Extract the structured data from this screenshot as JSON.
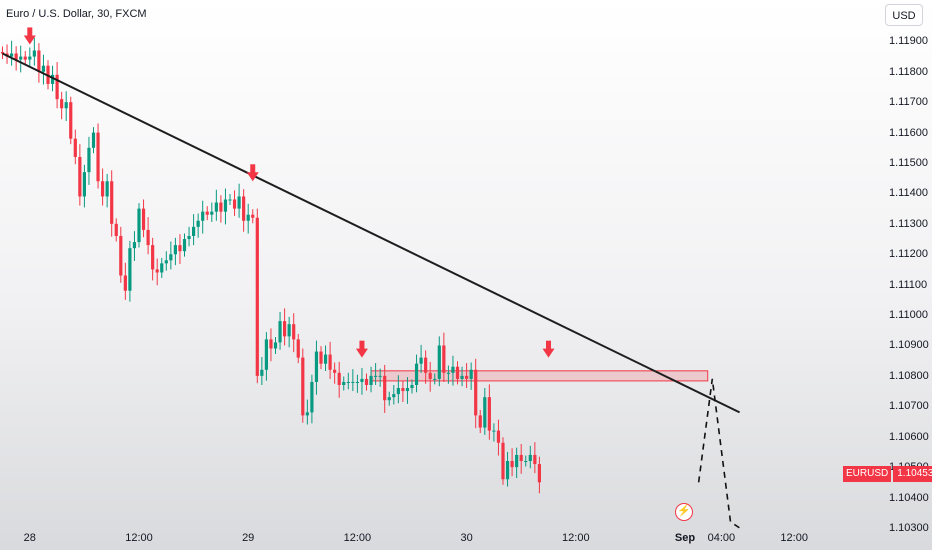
{
  "header": {
    "title": "Euro / U.S. Dollar, 30, FXCM",
    "currency_button": "USD"
  },
  "price_tag": {
    "symbol": "EURUSD",
    "value": "1.10453"
  },
  "colors": {
    "up": "#089981",
    "down": "#f23645",
    "trendline": "#1e1e1e",
    "zone": "#f23645"
  },
  "event_icon": "lightning-icon",
  "chart_data": {
    "type": "candlestick",
    "title": "Euro / U.S. Dollar, 30, FXCM",
    "ylim": [
      1.1028,
      1.1199
    ],
    "y_ticks": [
      "1.11900",
      "1.11800",
      "1.11700",
      "1.11600",
      "1.11500",
      "1.11400",
      "1.11300",
      "1.11200",
      "1.11100",
      "1.11000",
      "1.10900",
      "1.10800",
      "1.10700",
      "1.10600",
      "1.10500",
      "1.10400",
      "1.10300"
    ],
    "x_ticks": [
      {
        "label": "28",
        "bar": 6,
        "bold": false
      },
      {
        "label": "12:00",
        "bar": 30,
        "bold": false
      },
      {
        "label": "29",
        "bar": 54,
        "bold": false
      },
      {
        "label": "12:00",
        "bar": 78,
        "bold": false
      },
      {
        "label": "30",
        "bar": 102,
        "bold": false
      },
      {
        "label": "12:00",
        "bar": 126,
        "bold": false
      },
      {
        "label": "Sep",
        "bar": 150,
        "bold": true
      },
      {
        "label": "04:00",
        "bar": 158,
        "bold": false
      },
      {
        "label": "12:00",
        "bar": 174,
        "bold": false
      }
    ],
    "closes": [
      1.1186,
      1.1185,
      1.1186,
      1.1184,
      1.1185,
      1.1184,
      1.1185,
      1.1187,
      1.118,
      1.1182,
      1.1176,
      1.1179,
      1.1171,
      1.1168,
      1.117,
      1.1158,
      1.1152,
      1.1139,
      1.1147,
      1.1155,
      1.116,
      1.1144,
      1.1139,
      1.1144,
      1.113,
      1.1126,
      1.1113,
      1.1108,
      1.1122,
      1.1124,
      1.1135,
      1.1128,
      1.1123,
      1.1115,
      1.1114,
      1.1117,
      1.1118,
      1.112,
      1.1123,
      1.1121,
      1.1125,
      1.1126,
      1.1129,
      1.1131,
      1.1134,
      1.1133,
      1.1134,
      1.1137,
      1.1134,
      1.1138,
      1.1138,
      1.1135,
      1.1139,
      1.1131,
      1.1133,
      1.1132,
      1.108,
      1.1082,
      1.1092,
      1.1089,
      1.1091,
      1.1098,
      1.1093,
      1.1097,
      1.1092,
      1.1086,
      1.1067,
      1.1068,
      1.1078,
      1.1088,
      1.1084,
      1.1087,
      1.1082,
      1.1081,
      1.1077,
      1.1078,
      1.1078,
      1.1078,
      1.1078,
      1.1079,
      1.1077,
      1.108,
      1.108,
      1.108,
      1.1072,
      1.1073,
      1.1074,
      1.1076,
      1.1075,
      1.1076,
      1.1077,
      1.1084,
      1.1086,
      1.1081,
      1.1079,
      1.1079,
      1.109,
      1.1081,
      1.1081,
      1.1083,
      1.1079,
      1.108,
      1.1079,
      1.1082,
      1.1067,
      1.1063,
      1.1073,
      1.1062,
      1.1062,
      1.1058,
      1.1046,
      1.1052,
      1.105,
      1.1054,
      1.1052,
      1.1052,
      1.1054,
      1.1051,
      1.1045
    ],
    "start_bar": 0,
    "trendline": {
      "from_bar": 0,
      "from_price": 1.1186,
      "to_bar": 162,
      "to_price": 1.1068
    },
    "resistance_zone": {
      "from_bar": 81,
      "to_bar": 155,
      "low": 1.1079,
      "high": 1.1081
    },
    "projection": [
      {
        "bar": 153,
        "price": 1.1045
      },
      {
        "bar": 156,
        "price": 1.1079
      },
      {
        "bar": 160,
        "price": 1.1032
      },
      {
        "bar": 162,
        "price": 1.103
      }
    ],
    "arrow_markers": [
      {
        "bar": 6,
        "price": 1.1188
      },
      {
        "bar": 55,
        "price": 1.1143
      },
      {
        "bar": 79,
        "price": 1.1085
      },
      {
        "bar": 120,
        "price": 1.1085
      }
    ]
  }
}
